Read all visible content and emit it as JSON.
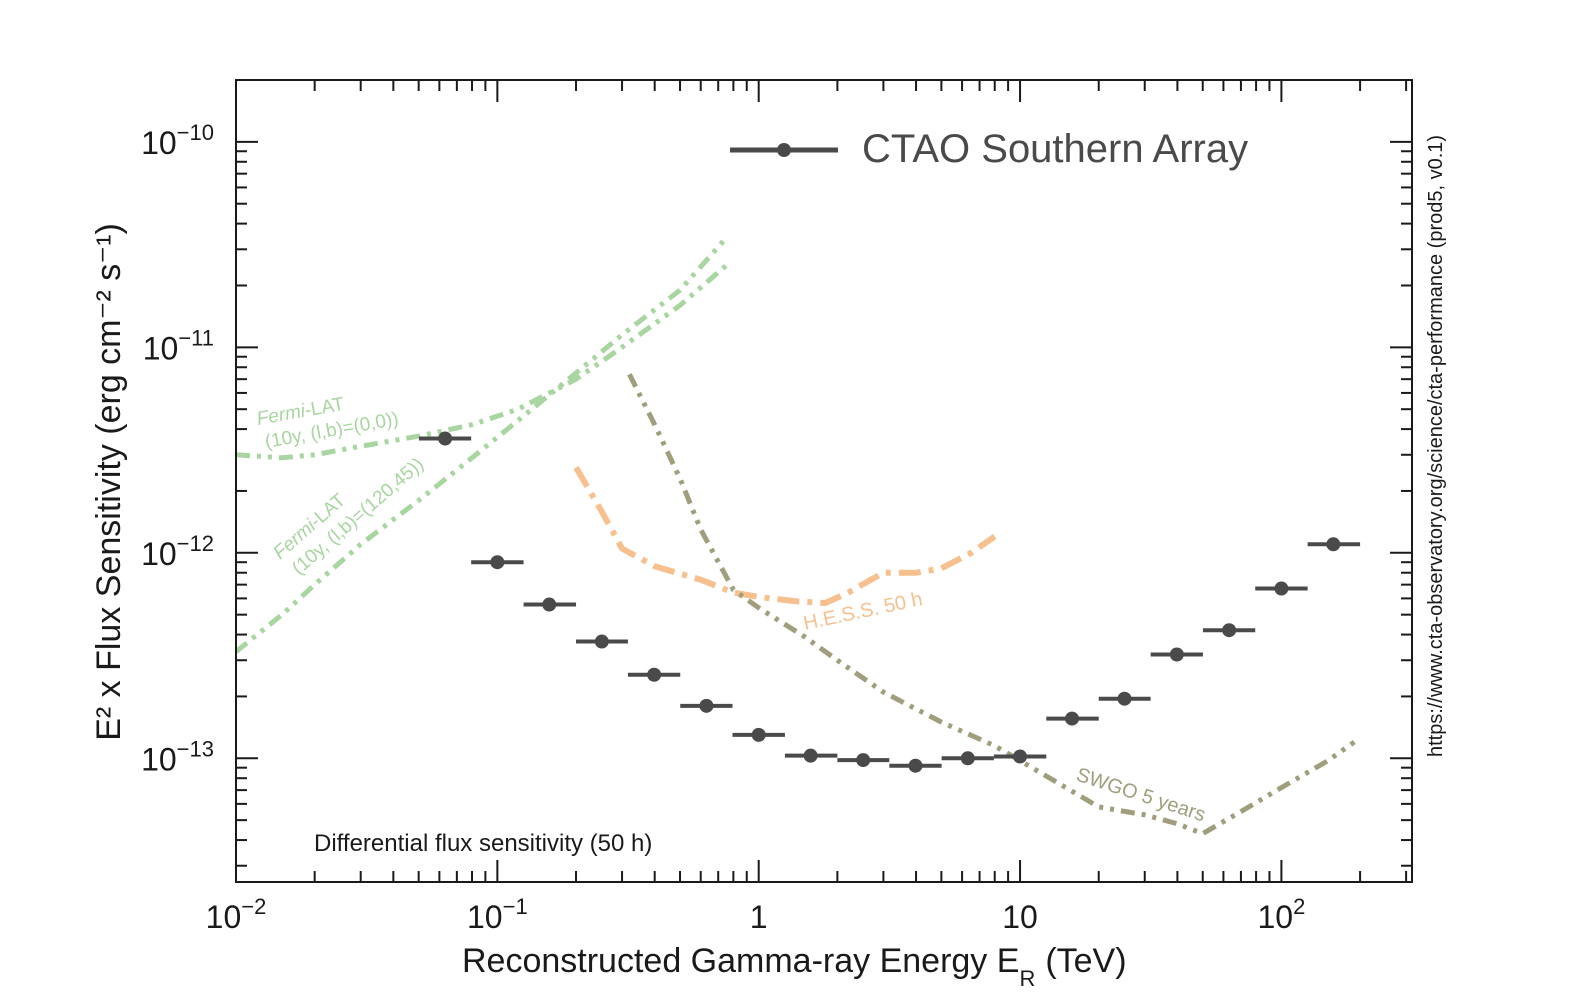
{
  "chart_data": {
    "type": "scatter",
    "title": "",
    "xlabel": "Reconstructed Gamma-ray Energy E",
    "xlabel_sub": "R",
    "xlabel_unit": "(TeV)",
    "ylabel": "E² x Flux Sensitivity (erg cm⁻² s⁻¹)",
    "xscale": "log",
    "yscale": "log",
    "xlim": [
      0.01,
      316
    ],
    "ylim": [
      2.5e-14,
      2e-10
    ],
    "x_ticklabels": [
      {
        "value": 0.01,
        "base": "10",
        "exp": "−2"
      },
      {
        "value": 0.1,
        "base": "10",
        "exp": "−1"
      },
      {
        "value": 1,
        "base": "1",
        "exp": ""
      },
      {
        "value": 10,
        "base": "10",
        "exp": ""
      },
      {
        "value": 100,
        "base": "10",
        "exp": "2"
      }
    ],
    "y_ticklabels": [
      {
        "value": 1e-10,
        "base": "10",
        "exp": "−10"
      },
      {
        "value": 1e-11,
        "base": "10",
        "exp": "−11"
      },
      {
        "value": 1e-12,
        "base": "10",
        "exp": "−12"
      },
      {
        "value": 1e-13,
        "base": "10",
        "exp": "−13"
      }
    ],
    "legend": {
      "placement": "top-right",
      "entries": [
        "CTAO Southern Array"
      ]
    },
    "annotations": {
      "bottom_left": "Differential flux sensitivity (50 h)",
      "right_side": "https://www.cta-observatory.org/science/cta-performance (prod5, v0.1)",
      "fermi_gc_line1": "Fermi",
      "fermi_gc_line1b": "-LAT",
      "fermi_gc_line2": "(10y, (l,b)=(0,0))",
      "fermi_hl_line1": "Fermi",
      "fermi_hl_line1b": "-LAT",
      "fermi_hl_line2": "(10y, (l,b)=(120,45))",
      "hess": "H.E.S.S. 50 h",
      "swgo": "SWGO 5 years"
    },
    "colors": {
      "cta": "#4a4a4a",
      "fermi": "#a8d5a0",
      "hess": "#f6c08f",
      "swgo": "#a09e7c"
    },
    "series": [
      {
        "name": "CTAO Southern Array",
        "style": "points-with-xerr",
        "points": [
          {
            "x": 0.0631,
            "y": 3.6e-12,
            "xlo": 0.0501,
            "xhi": 0.0794
          },
          {
            "x": 0.1,
            "y": 9e-13,
            "xlo": 0.0794,
            "xhi": 0.126
          },
          {
            "x": 0.158,
            "y": 5.6e-13,
            "xlo": 0.126,
            "xhi": 0.2
          },
          {
            "x": 0.251,
            "y": 3.7e-13,
            "xlo": 0.2,
            "xhi": 0.316
          },
          {
            "x": 0.398,
            "y": 2.55e-13,
            "xlo": 0.316,
            "xhi": 0.501
          },
          {
            "x": 0.631,
            "y": 1.8e-13,
            "xlo": 0.501,
            "xhi": 0.794
          },
          {
            "x": 1.0,
            "y": 1.3e-13,
            "xlo": 0.794,
            "xhi": 1.26
          },
          {
            "x": 1.58,
            "y": 1.03e-13,
            "xlo": 1.26,
            "xhi": 2.0
          },
          {
            "x": 2.51,
            "y": 9.8e-14,
            "xlo": 2.0,
            "xhi": 3.16
          },
          {
            "x": 3.98,
            "y": 9.2e-14,
            "xlo": 3.16,
            "xhi": 5.01
          },
          {
            "x": 6.31,
            "y": 1e-13,
            "xlo": 5.01,
            "xhi": 7.94
          },
          {
            "x": 10.0,
            "y": 1.02e-13,
            "xlo": 7.94,
            "xhi": 12.6
          },
          {
            "x": 15.8,
            "y": 1.56e-13,
            "xlo": 12.6,
            "xhi": 20.0
          },
          {
            "x": 25.1,
            "y": 1.95e-13,
            "xlo": 20.0,
            "xhi": 31.6
          },
          {
            "x": 39.8,
            "y": 3.2e-13,
            "xlo": 31.6,
            "xhi": 50.1
          },
          {
            "x": 63.1,
            "y": 4.2e-13,
            "xlo": 50.1,
            "xhi": 79.4
          },
          {
            "x": 100.0,
            "y": 6.7e-13,
            "xlo": 79.4,
            "xhi": 126
          },
          {
            "x": 158.0,
            "y": 1.1e-12,
            "xlo": 126,
            "xhi": 200
          }
        ]
      },
      {
        "name": "Fermi-LAT (10y, (l,b)=(0,0))",
        "style": "dashdotdot",
        "points": [
          [
            0.01,
            3e-12
          ],
          [
            0.015,
            2.9e-12
          ],
          [
            0.02,
            3e-12
          ],
          [
            0.03,
            3.3e-12
          ],
          [
            0.05,
            3.7e-12
          ],
          [
            0.08,
            4.2e-12
          ],
          [
            0.12,
            5e-12
          ],
          [
            0.2,
            7e-12
          ],
          [
            0.3,
            1e-11
          ],
          [
            0.5,
            1.6e-11
          ],
          [
            0.75,
            2.5e-11
          ]
        ]
      },
      {
        "name": "Fermi-LAT (10y, (l,b)=(120,45))",
        "style": "dashdotdot",
        "points": [
          [
            0.01,
            3.3e-13
          ],
          [
            0.015,
            5e-13
          ],
          [
            0.02,
            7e-13
          ],
          [
            0.03,
            1.1e-12
          ],
          [
            0.05,
            1.8e-12
          ],
          [
            0.08,
            2.9e-12
          ],
          [
            0.12,
            4.4e-12
          ],
          [
            0.2,
            7.5e-12
          ],
          [
            0.3,
            1.15e-11
          ],
          [
            0.5,
            1.9e-11
          ],
          [
            0.75,
            3.4e-11
          ]
        ]
      },
      {
        "name": "H.E.S.S. 50 h",
        "style": "dashdot",
        "points": [
          [
            0.2,
            2.6e-12
          ],
          [
            0.25,
            1.6e-12
          ],
          [
            0.3,
            1.05e-12
          ],
          [
            0.4,
            8.6e-13
          ],
          [
            0.6,
            7.4e-13
          ],
          [
            0.8,
            6.4e-13
          ],
          [
            1.0,
            6.1e-13
          ],
          [
            1.4,
            5.8e-13
          ],
          [
            1.8,
            5.7e-13
          ],
          [
            2.2,
            6.4e-13
          ],
          [
            3.0,
            8e-13
          ],
          [
            4.0,
            8e-13
          ],
          [
            5.0,
            8.4e-13
          ],
          [
            6.5,
            1e-12
          ],
          [
            8.0,
            1.2e-12
          ]
        ]
      },
      {
        "name": "SWGO 5 years",
        "style": "dashdotdot",
        "points": [
          [
            0.32,
            7.4e-12
          ],
          [
            0.4,
            4.2e-12
          ],
          [
            0.5,
            2.3e-12
          ],
          [
            0.6,
            1.3e-12
          ],
          [
            0.8,
            6.6e-13
          ],
          [
            1.0,
            5.4e-13
          ],
          [
            1.5,
            3.9e-13
          ],
          [
            2.0,
            3e-13
          ],
          [
            3.0,
            2.1e-13
          ],
          [
            5.0,
            1.5e-13
          ],
          [
            8.0,
            1.15e-13
          ],
          [
            12.0,
            8.5e-14
          ],
          [
            20.0,
            5.8e-14
          ],
          [
            30.0,
            5.3e-14
          ],
          [
            40.0,
            4.8e-14
          ],
          [
            50.0,
            4.3e-14
          ],
          [
            70.0,
            5.5e-14
          ],
          [
            100.0,
            7.2e-14
          ],
          [
            150.0,
            9.7e-14
          ],
          [
            190.0,
            1.2e-13
          ]
        ]
      }
    ]
  }
}
